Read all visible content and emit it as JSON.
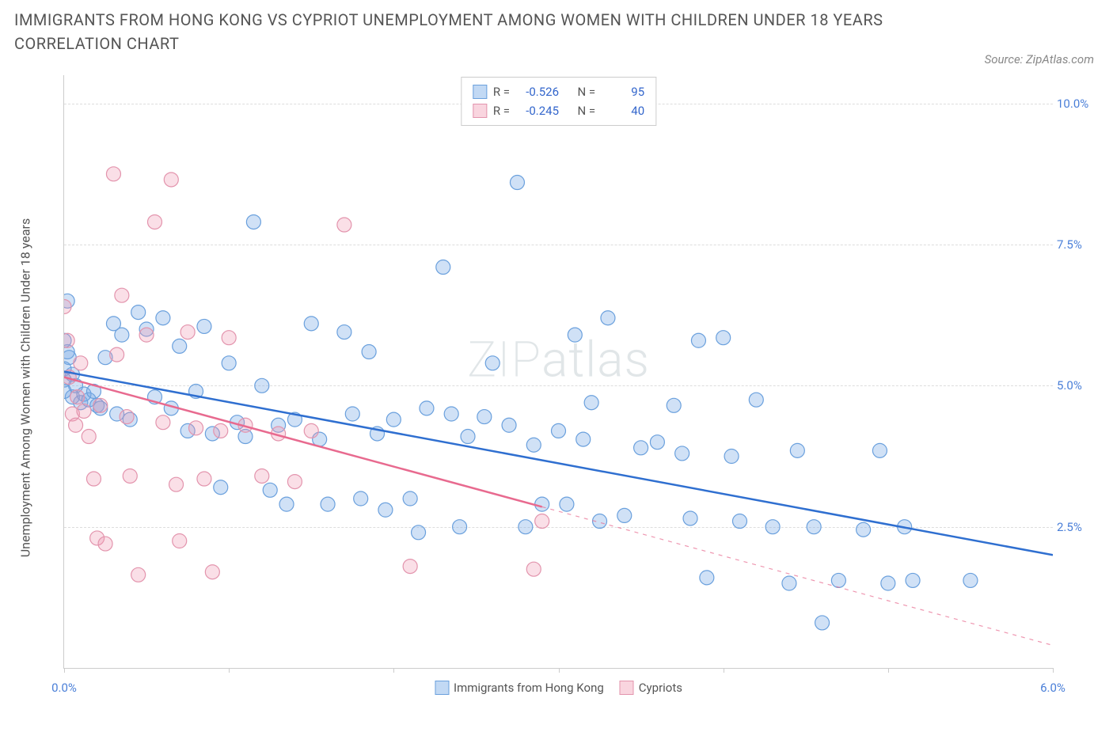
{
  "title": "IMMIGRANTS FROM HONG KONG VS CYPRIOT UNEMPLOYMENT AMONG WOMEN WITH CHILDREN UNDER 18 YEARS CORRELATION CHART",
  "source": "Source: ZipAtlas.com",
  "watermark": "ZIPatlas",
  "y_axis_label": "Unemployment Among Women with Children Under 18 years",
  "chart": {
    "type": "scatter-with-regression",
    "background_color": "#ffffff",
    "grid_color": "#dddddd",
    "axis_color": "#cccccc",
    "tick_label_color": "#4a7fd8",
    "xlim": [
      0.0,
      6.0
    ],
    "ylim": [
      0.0,
      10.5
    ],
    "y_ticks": [
      {
        "v": 2.5,
        "label": "2.5%"
      },
      {
        "v": 5.0,
        "label": "5.0%"
      },
      {
        "v": 7.5,
        "label": "7.5%"
      },
      {
        "v": 10.0,
        "label": "10.0%"
      }
    ],
    "x_tick_marks": [
      0.0,
      1.0,
      2.0,
      3.0,
      4.0,
      5.0,
      6.0
    ],
    "x_tick_labels": [
      {
        "v": 0.0,
        "label": "0.0%"
      },
      {
        "v": 6.0,
        "label": "6.0%"
      }
    ],
    "series": [
      {
        "key": "hk",
        "label": "Immigrants from Hong Kong",
        "marker_fill": "rgba(120,170,230,0.35)",
        "marker_stroke": "#6aa0dd",
        "marker_r": 9,
        "line_color": "#2f6fd0",
        "line_width": 2.5,
        "R": "-0.526",
        "N": "95",
        "regression": {
          "x1": 0.0,
          "y1": 5.25,
          "x2": 6.0,
          "y2": 2.0,
          "solid_until_x": 6.0
        },
        "points": [
          [
            0.02,
            5.6
          ],
          [
            0.03,
            5.5
          ],
          [
            0.05,
            5.2
          ],
          [
            0.05,
            4.8
          ],
          [
            0.07,
            5.0
          ],
          [
            0.1,
            4.7
          ],
          [
            0.12,
            4.85
          ],
          [
            0.15,
            4.75
          ],
          [
            0.18,
            4.9
          ],
          [
            0.2,
            4.65
          ],
          [
            0.22,
            4.6
          ],
          [
            0.25,
            5.5
          ],
          [
            0.3,
            6.1
          ],
          [
            0.32,
            4.5
          ],
          [
            0.35,
            5.9
          ],
          [
            0.4,
            4.4
          ],
          [
            0.45,
            6.3
          ],
          [
            0.5,
            6.0
          ],
          [
            0.55,
            4.8
          ],
          [
            0.6,
            6.2
          ],
          [
            0.65,
            4.6
          ],
          [
            0.7,
            5.7
          ],
          [
            0.75,
            4.2
          ],
          [
            0.8,
            4.9
          ],
          [
            0.85,
            6.05
          ],
          [
            0.9,
            4.15
          ],
          [
            0.95,
            3.2
          ],
          [
            1.0,
            5.4
          ],
          [
            1.05,
            4.35
          ],
          [
            1.1,
            4.1
          ],
          [
            1.15,
            7.9
          ],
          [
            1.2,
            5.0
          ],
          [
            1.25,
            3.15
          ],
          [
            1.3,
            4.3
          ],
          [
            1.35,
            2.9
          ],
          [
            1.4,
            4.4
          ],
          [
            1.5,
            6.1
          ],
          [
            1.55,
            4.05
          ],
          [
            1.6,
            2.9
          ],
          [
            1.7,
            5.95
          ],
          [
            1.75,
            4.5
          ],
          [
            1.8,
            3.0
          ],
          [
            1.85,
            5.6
          ],
          [
            1.9,
            4.15
          ],
          [
            1.95,
            2.8
          ],
          [
            2.0,
            4.4
          ],
          [
            2.1,
            3.0
          ],
          [
            2.15,
            2.4
          ],
          [
            2.2,
            4.6
          ],
          [
            2.3,
            7.1
          ],
          [
            2.35,
            4.5
          ],
          [
            2.4,
            2.5
          ],
          [
            2.45,
            4.1
          ],
          [
            2.55,
            4.45
          ],
          [
            2.6,
            5.4
          ],
          [
            2.7,
            4.3
          ],
          [
            2.75,
            8.6
          ],
          [
            2.8,
            2.5
          ],
          [
            2.85,
            3.95
          ],
          [
            2.9,
            2.9
          ],
          [
            3.0,
            4.2
          ],
          [
            3.05,
            2.9
          ],
          [
            3.1,
            5.9
          ],
          [
            3.15,
            4.05
          ],
          [
            3.2,
            4.7
          ],
          [
            3.25,
            2.6
          ],
          [
            3.3,
            6.2
          ],
          [
            3.4,
            2.7
          ],
          [
            3.5,
            3.9
          ],
          [
            3.6,
            4.0
          ],
          [
            3.7,
            4.65
          ],
          [
            3.75,
            3.8
          ],
          [
            3.8,
            2.65
          ],
          [
            3.85,
            5.8
          ],
          [
            3.9,
            1.6
          ],
          [
            4.0,
            5.85
          ],
          [
            4.05,
            3.75
          ],
          [
            4.1,
            2.6
          ],
          [
            4.2,
            4.75
          ],
          [
            4.3,
            2.5
          ],
          [
            4.4,
            1.5
          ],
          [
            4.45,
            3.85
          ],
          [
            4.55,
            2.5
          ],
          [
            4.6,
            0.8
          ],
          [
            4.7,
            1.55
          ],
          [
            4.85,
            2.45
          ],
          [
            4.95,
            3.85
          ],
          [
            5.0,
            1.5
          ],
          [
            5.1,
            2.5
          ],
          [
            5.15,
            1.55
          ],
          [
            5.5,
            1.55
          ],
          [
            0.02,
            6.5
          ],
          [
            0.0,
            5.8
          ],
          [
            0.0,
            5.3
          ],
          [
            0.0,
            5.1
          ],
          [
            0.0,
            4.9
          ]
        ]
      },
      {
        "key": "cy",
        "label": "Cypriots",
        "marker_fill": "rgba(240,150,175,0.30)",
        "marker_stroke": "#e394ad",
        "marker_r": 9,
        "line_color": "#e86a8f",
        "line_width": 2.5,
        "R": "-0.245",
        "N": "40",
        "regression": {
          "x1": 0.0,
          "y1": 5.15,
          "x2": 6.0,
          "y2": 0.4,
          "solid_until_x": 2.9
        },
        "points": [
          [
            0.0,
            6.4
          ],
          [
            0.02,
            5.8
          ],
          [
            0.03,
            5.15
          ],
          [
            0.05,
            4.5
          ],
          [
            0.07,
            4.3
          ],
          [
            0.08,
            4.8
          ],
          [
            0.1,
            5.4
          ],
          [
            0.12,
            4.55
          ],
          [
            0.15,
            4.1
          ],
          [
            0.18,
            3.35
          ],
          [
            0.2,
            2.3
          ],
          [
            0.22,
            4.65
          ],
          [
            0.25,
            2.2
          ],
          [
            0.3,
            8.75
          ],
          [
            0.32,
            5.55
          ],
          [
            0.35,
            6.6
          ],
          [
            0.38,
            4.45
          ],
          [
            0.4,
            3.4
          ],
          [
            0.45,
            1.65
          ],
          [
            0.5,
            5.9
          ],
          [
            0.55,
            7.9
          ],
          [
            0.6,
            4.35
          ],
          [
            0.65,
            8.65
          ],
          [
            0.68,
            3.25
          ],
          [
            0.7,
            2.25
          ],
          [
            0.75,
            5.95
          ],
          [
            0.8,
            4.25
          ],
          [
            0.85,
            3.35
          ],
          [
            0.9,
            1.7
          ],
          [
            0.95,
            4.2
          ],
          [
            1.0,
            5.85
          ],
          [
            1.1,
            4.3
          ],
          [
            1.2,
            3.4
          ],
          [
            1.3,
            4.15
          ],
          [
            1.4,
            3.3
          ],
          [
            1.5,
            4.2
          ],
          [
            1.7,
            7.85
          ],
          [
            2.1,
            1.8
          ],
          [
            2.85,
            1.75
          ],
          [
            2.9,
            2.6
          ]
        ]
      }
    ],
    "legend_top": {
      "border_color": "#cccccc",
      "rows": [
        {
          "swatch_fill": "rgba(120,170,230,0.45)",
          "swatch_stroke": "#6aa0dd",
          "R_label": "R =",
          "N_label": "N =",
          "R_key": "chart.series.0.R",
          "N_key": "chart.series.0.N"
        },
        {
          "swatch_fill": "rgba(240,150,175,0.40)",
          "swatch_stroke": "#e394ad",
          "R_label": "R =",
          "N_label": "N =",
          "R_key": "chart.series.1.R",
          "N_key": "chart.series.1.N"
        }
      ]
    },
    "legend_bottom": [
      {
        "swatch_fill": "rgba(120,170,230,0.45)",
        "swatch_stroke": "#6aa0dd",
        "label_key": "chart.series.0.label"
      },
      {
        "swatch_fill": "rgba(240,150,175,0.40)",
        "swatch_stroke": "#e394ad",
        "label_key": "chart.series.1.label"
      }
    ]
  }
}
